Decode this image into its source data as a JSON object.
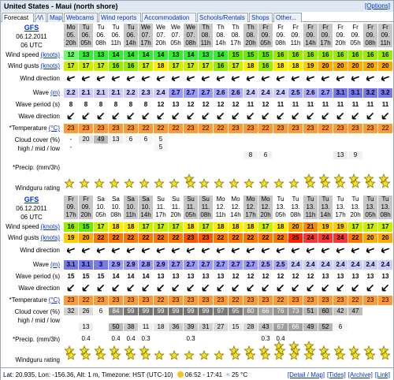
{
  "title": "United States - Maui (north shore)",
  "options_label": "[Options]",
  "tabs": [
    {
      "label": "Forecast",
      "active": true
    },
    {
      "label": "⁄\\/\\",
      "active": false
    },
    {
      "label": "Map",
      "active": false
    },
    {
      "label": "Webcams",
      "active": false
    },
    {
      "label": "Wind reports",
      "active": false
    },
    {
      "label": "Accommodation",
      "active": false
    },
    {
      "label": "Schools/Rentals",
      "active": false
    },
    {
      "label": "Shops",
      "active": false
    },
    {
      "label": "Other...",
      "active": false
    }
  ],
  "labels": {
    "wind_speed": "Wind speed",
    "wind_gusts": "Wind gusts",
    "wind_direction": "Wind direction",
    "wave": "Wave",
    "wave_period": "Wave period (s)",
    "wave_direction": "Wave direction",
    "temperature": "*Temperature",
    "cloud_cover": "Cloud cover (%)",
    "cloud_sub": "high / mid / low",
    "precip": "*Precip. (mm/3h)",
    "rating": "Windguru rating",
    "unit_knots": "(knots)",
    "unit_m": "(m)",
    "unit_c": "(°C)"
  },
  "sections": [
    {
      "model": "GFS",
      "date": "06.12.2011",
      "utc": "06 UTC",
      "days": [
        "Mo",
        "Tu",
        "Tu",
        "Tu",
        "Tu",
        "We",
        "We",
        "We",
        "We",
        "Th",
        "Th",
        "Th",
        "Th",
        "Fr",
        "Fr",
        "Fr",
        "Fr",
        "Fr",
        "Fr",
        "Fr",
        "Fr",
        "Fr"
      ],
      "dates": [
        "05.",
        "06.",
        "06.",
        "06.",
        "06.",
        "07.",
        "07.",
        "07.",
        "07.",
        "08.",
        "08.",
        "08.",
        "08.",
        "09.",
        "09.",
        "09.",
        "09.",
        "09.",
        "09.",
        "09.",
        "09.",
        "09."
      ],
      "hours": [
        "20h",
        "05h",
        "08h",
        "11h",
        "14h",
        "17h",
        "20h",
        "05h",
        "08h",
        "11h",
        "14h",
        "17h",
        "20h",
        "05h",
        "08h",
        "11h",
        "14h",
        "17h",
        "20h",
        "05h",
        "08h",
        "11h"
      ],
      "wind_speed": [
        "12",
        "13",
        "13",
        "14",
        "14",
        "14",
        "14",
        "13",
        "14",
        "13",
        "14",
        "15",
        "15",
        "15",
        "16",
        "16",
        "16",
        "16",
        "16",
        "16",
        "16",
        "16"
      ],
      "wind_gusts": [
        "17",
        "17",
        "17",
        "16",
        "16",
        "17",
        "18",
        "17",
        "17",
        "17",
        "16",
        "17",
        "18",
        "16",
        "18",
        "18",
        "19",
        "20",
        "20",
        "20",
        "20",
        "20"
      ],
      "wind_dir": [
        250,
        250,
        250,
        250,
        250,
        250,
        250,
        250,
        250,
        250,
        250,
        250,
        250,
        250,
        250,
        250,
        250,
        250,
        250,
        250,
        250,
        250
      ],
      "wave": [
        "2.2",
        "2.1",
        "2.1",
        "2.1",
        "2.2",
        "2.3",
        "2.4",
        "2.7",
        "2.7",
        "2.7",
        "2.6",
        "2.6",
        "2.4",
        "2.4",
        "2.4",
        "2.5",
        "2.6",
        "2.7",
        "3.1",
        "3.1",
        "3.2",
        "3.2"
      ],
      "wave_period": [
        "8",
        "8",
        "8",
        "8",
        "8",
        "8",
        "12",
        "13",
        "12",
        "12",
        "12",
        "12",
        "11",
        "12",
        "11",
        "11",
        "11",
        "11",
        "11",
        "11",
        "11",
        "11"
      ],
      "wave_dir": [
        225,
        225,
        225,
        225,
        225,
        225,
        225,
        225,
        225,
        225,
        225,
        225,
        225,
        225,
        225,
        225,
        225,
        225,
        225,
        225,
        225,
        225
      ],
      "temperature": [
        "23",
        "23",
        "23",
        "23",
        "23",
        "22",
        "22",
        "22",
        "23",
        "22",
        "22",
        "23",
        "23",
        "22",
        "23",
        "23",
        "23",
        "22",
        "23",
        "23",
        "23",
        "22"
      ],
      "cloud_high": [
        "-",
        "20",
        "49",
        "13",
        "6",
        "6",
        "5",
        "",
        "",
        "",
        "",
        "",
        "",
        "",
        "",
        "",
        "",
        "",
        "",
        "",
        "",
        ""
      ],
      "cloud_mid": [
        "-",
        "",
        "",
        "",
        "",
        "",
        "5",
        "",
        "",
        "",
        "",
        "",
        "",
        "",
        "",
        "",
        "",
        "",
        "",
        "",
        "",
        ""
      ],
      "cloud_low": [
        "",
        "",
        "",
        "",
        "",
        "",
        "",
        "",
        "",
        "",
        "",
        "",
        "8",
        "6",
        "",
        "",
        "",
        "",
        "13",
        "9",
        "",
        ""
      ],
      "precip": [
        "",
        "",
        "",
        "",
        "",
        "",
        "",
        "",
        "",
        "",
        "",
        "",
        "",
        "",
        "",
        "",
        "",
        "",
        "",
        "",
        "",
        ""
      ],
      "rating": [
        1,
        1,
        1,
        1,
        1,
        1,
        1,
        1,
        2,
        1,
        1,
        1,
        1,
        1,
        1,
        1,
        2,
        2,
        2,
        2,
        2,
        2
      ]
    },
    {
      "model": "GFS",
      "date": "06.12.2011",
      "utc": "06 UTC",
      "days": [
        "Fr",
        "Fr",
        "Sa",
        "Sa",
        "Sa",
        "Sa",
        "Su",
        "Su",
        "Su",
        "Su",
        "Mo",
        "Mo",
        "Mo",
        "Mo",
        "Tu",
        "Tu",
        "Tu",
        "Tu",
        "Tu",
        "Tu",
        "Tu",
        "Tu"
      ],
      "dates": [
        "09.",
        "09.",
        "10.",
        "10.",
        "10.",
        "10.",
        "11.",
        "11.",
        "11.",
        "11.",
        "12.",
        "12.",
        "12.",
        "12.",
        "13.",
        "13.",
        "13.",
        "13.",
        "13.",
        "13.",
        "13.",
        "13."
      ],
      "hours": [
        "17h",
        "20h",
        "05h",
        "08h",
        "11h",
        "14h",
        "17h",
        "20h",
        "05h",
        "08h",
        "11h",
        "14h",
        "17h",
        "20h",
        "05h",
        "08h",
        "11h",
        "14h",
        "17h",
        "20h",
        "05h",
        "08h"
      ],
      "wind_speed": [
        "16",
        "15",
        "17",
        "18",
        "18",
        "17",
        "17",
        "17",
        "18",
        "17",
        "18",
        "18",
        "18",
        "17",
        "18",
        "20",
        "21",
        "19",
        "19",
        "17",
        "17",
        "17"
      ],
      "wind_gusts": [
        "19",
        "20",
        "22",
        "22",
        "22",
        "22",
        "22",
        "22",
        "23",
        "23",
        "22",
        "22",
        "22",
        "22",
        "22",
        "25",
        "24",
        "24",
        "24",
        "22",
        "20",
        "20"
      ],
      "wind_dir": [
        250,
        250,
        250,
        250,
        250,
        250,
        250,
        250,
        250,
        250,
        250,
        250,
        250,
        250,
        250,
        250,
        250,
        250,
        250,
        250,
        250,
        250
      ],
      "wave": [
        "3.1",
        "3.1",
        "3",
        "2.9",
        "2.9",
        "2.8",
        "2.9",
        "2.7",
        "2.7",
        "2.7",
        "2.7",
        "2.7",
        "2.7",
        "2.5",
        "2.5",
        "2.4",
        "2.4",
        "2.4",
        "2.4",
        "2.4",
        "2.4",
        "2.4"
      ],
      "wave_period": [
        "15",
        "15",
        "15",
        "14",
        "14",
        "14",
        "13",
        "13",
        "13",
        "13",
        "13",
        "12",
        "12",
        "12",
        "12",
        "12",
        "12",
        "13",
        "13",
        "13",
        "13",
        "13"
      ],
      "wave_dir": [
        225,
        225,
        225,
        225,
        225,
        225,
        225,
        225,
        225,
        225,
        225,
        225,
        225,
        225,
        225,
        225,
        225,
        225,
        225,
        225,
        225,
        225
      ],
      "temperature": [
        "23",
        "22",
        "23",
        "23",
        "23",
        "23",
        "22",
        "23",
        "23",
        "23",
        "23",
        "22",
        "23",
        "23",
        "22",
        "23",
        "23",
        "23",
        "23",
        "22",
        "23",
        "23"
      ],
      "cloud_high": [
        "32",
        "26",
        "6",
        "84",
        "99",
        "99",
        "99",
        "99",
        "99",
        "99",
        "97",
        "95",
        "80",
        "66",
        "76",
        "73",
        "51",
        "60",
        "42",
        "47",
        "",
        ""
      ],
      "cloud_mid": [
        "",
        "",
        "",
        "",
        "",
        "",
        "",
        "",
        "",
        "",
        "",
        "",
        "",
        "",
        "",
        "",
        "",
        "",
        "",
        "",
        "",
        ""
      ],
      "cloud_low": [
        "",
        "13",
        "",
        "50",
        "38",
        "11",
        "18",
        "36",
        "39",
        "31",
        "27",
        "15",
        "28",
        "43",
        "67",
        "66",
        "49",
        "52",
        "6",
        "",
        "",
        ""
      ],
      "precip": [
        "",
        "0.4",
        "",
        "0.4",
        "0.4",
        "0.3",
        "",
        "",
        "0.3",
        "",
        "",
        "",
        "",
        "0.3",
        "0.4",
        "",
        "",
        "",
        "",
        "",
        "",
        ""
      ],
      "rating": [
        2,
        2,
        2,
        2,
        2,
        2,
        1,
        1,
        1,
        1,
        1,
        2,
        2,
        2,
        3,
        3,
        3,
        2,
        2,
        2,
        2,
        2
      ]
    }
  ],
  "footer": {
    "lat": "Lat: 20.935, Lon: -156.36, Alt: 1 m, Timezone: HST (UTC-10)",
    "sun": "06:52 - 17:41",
    "water": "25 °C",
    "links": [
      "[Detail / Map]",
      "[Tides]",
      "[Archive]",
      "[Link]"
    ]
  },
  "colors": {
    "header_bg": "#dfe9f4",
    "border": "#9aa7b6",
    "link": "#0033cc",
    "temp": "#ff9933",
    "star": "#f5e21a"
  }
}
